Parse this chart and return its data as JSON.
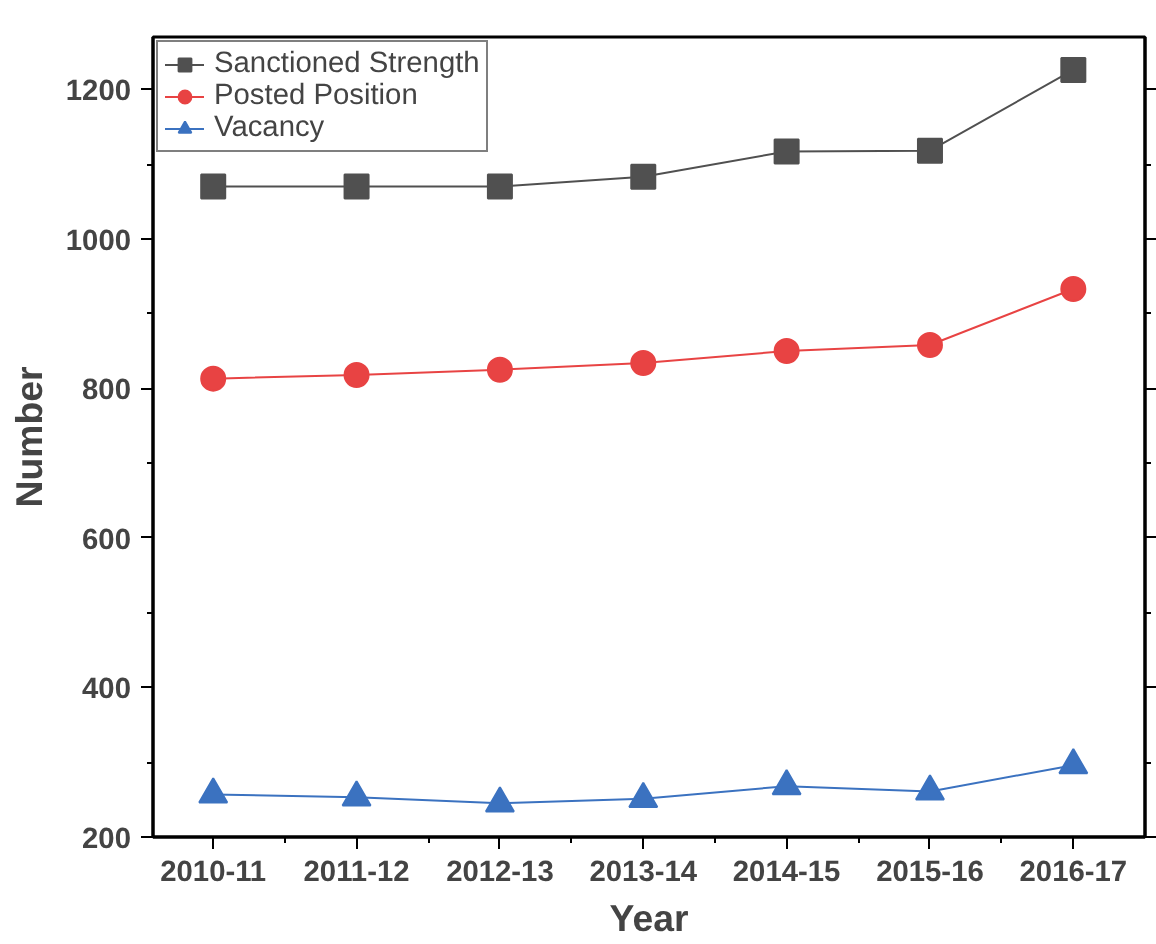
{
  "chart_data": {
    "type": "line",
    "xlabel": "Year",
    "ylabel": "Number",
    "categories": [
      "2010-11",
      "2011-12",
      "2012-13",
      "2013-14",
      "2014-15",
      "2015-16",
      "2016-17"
    ],
    "series": [
      {
        "name": "Sanctioned Strength",
        "color": "#505050",
        "marker": "square",
        "values": [
          1070,
          1070,
          1070,
          1083,
          1117,
          1118,
          1226
        ]
      },
      {
        "name": "Posted Position",
        "color": "#e84343",
        "marker": "circle",
        "values": [
          813,
          818,
          825,
          834,
          850,
          858,
          933
        ]
      },
      {
        "name": "Vacancy",
        "color": "#3b72c0",
        "marker": "triangle",
        "values": [
          257,
          253,
          245,
          251,
          268,
          261,
          296
        ]
      }
    ],
    "ylim": [
      200,
      1270
    ],
    "yticks": [
      200,
      400,
      600,
      800,
      1000,
      1200
    ],
    "grid": false,
    "legend": "top left",
    "line_style": "solid"
  }
}
